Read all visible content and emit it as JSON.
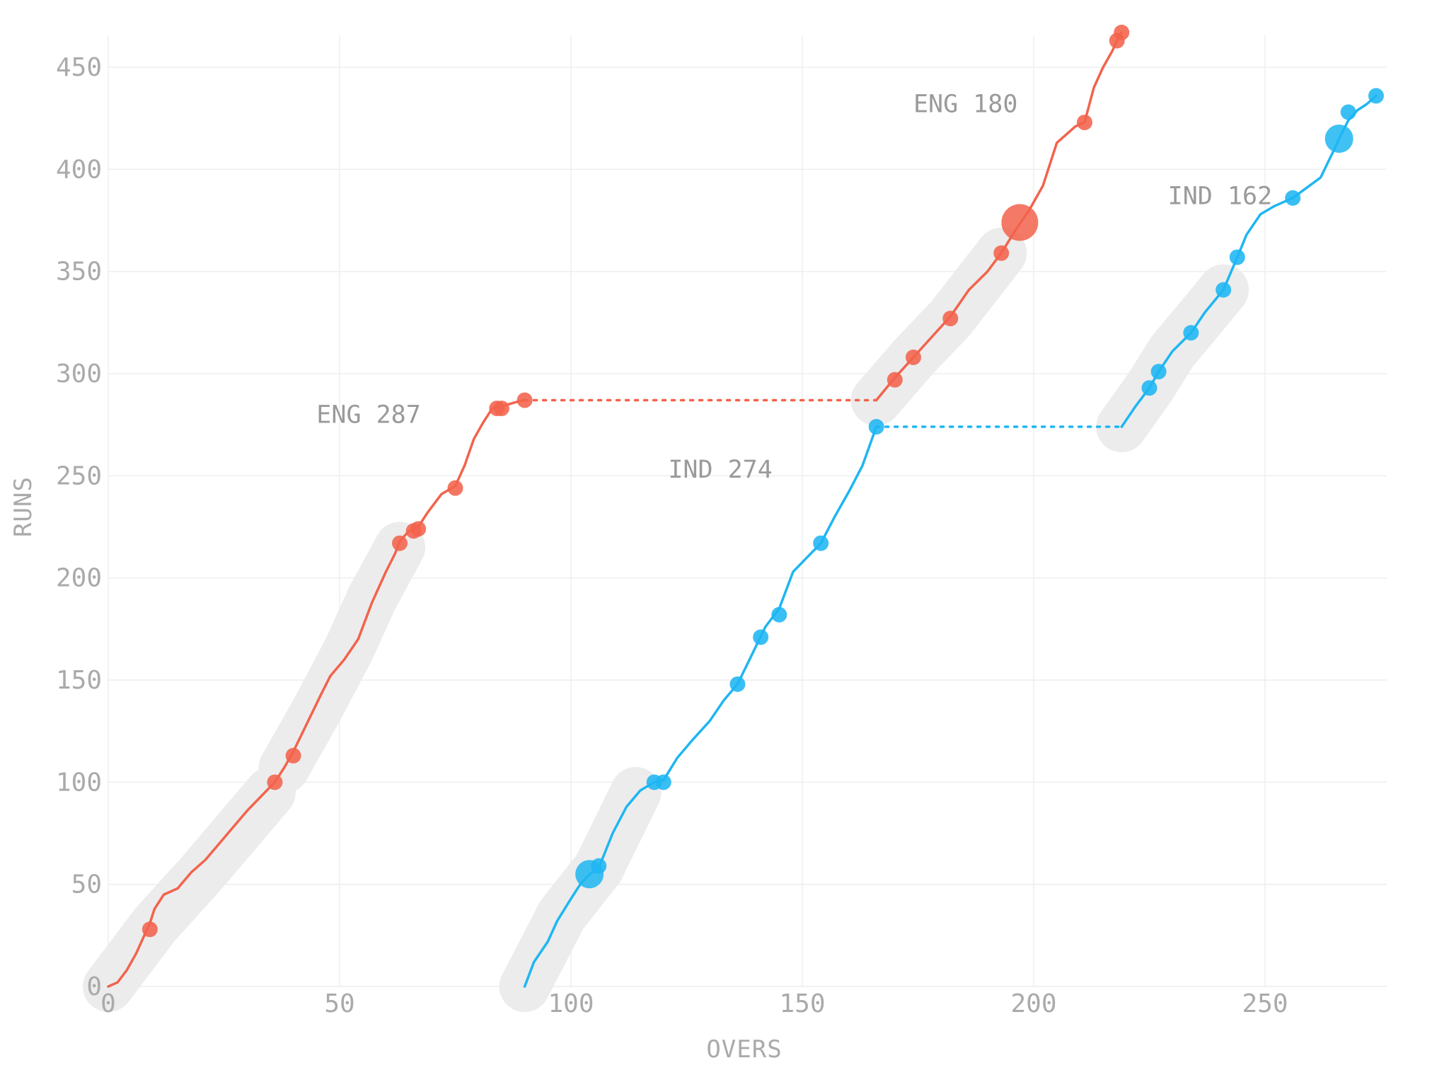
{
  "chart_data": {
    "type": "line",
    "xlabel": "OVERS",
    "ylabel": "RUNS",
    "xlim": [
      0,
      274
    ],
    "ylim": [
      0,
      465
    ],
    "x_ticks": [
      0,
      50,
      100,
      150,
      200,
      250
    ],
    "y_ticks": [
      0,
      50,
      100,
      150,
      200,
      250,
      300,
      350,
      400,
      450
    ],
    "grid": true,
    "colors": {
      "ENG": "#f2634c",
      "IND": "#1eb6f2",
      "partnership_band": "#ececec"
    },
    "annotations": [
      {
        "text": "ENG 287",
        "x": 45,
        "y": 276
      },
      {
        "text": "IND 274",
        "x": 121,
        "y": 249
      },
      {
        "text": "ENG 180",
        "x": 174,
        "y": 428
      },
      {
        "text": "IND 162",
        "x": 229,
        "y": 383
      }
    ],
    "series": [
      {
        "team": "ENG",
        "innings": 1,
        "line": [
          [
            0,
            0
          ],
          [
            2,
            2
          ],
          [
            4,
            8
          ],
          [
            6,
            16
          ],
          [
            8,
            26
          ],
          [
            9,
            31
          ],
          [
            10,
            38
          ],
          [
            12,
            45
          ],
          [
            15,
            48
          ],
          [
            18,
            56
          ],
          [
            21,
            62
          ],
          [
            24,
            70
          ],
          [
            27,
            78
          ],
          [
            30,
            86
          ],
          [
            33,
            93
          ],
          [
            36,
            100
          ],
          [
            38,
            107
          ],
          [
            40,
            115
          ],
          [
            43,
            129
          ],
          [
            46,
            143
          ],
          [
            48,
            152
          ],
          [
            51,
            160
          ],
          [
            54,
            170
          ],
          [
            57,
            188
          ],
          [
            60,
            203
          ],
          [
            62,
            212
          ],
          [
            63,
            218
          ],
          [
            65,
            223
          ],
          [
            67,
            225
          ],
          [
            69,
            232
          ],
          [
            72,
            241
          ],
          [
            75,
            245
          ],
          [
            77,
            255
          ],
          [
            79,
            268
          ],
          [
            81,
            276
          ],
          [
            83,
            283
          ],
          [
            85,
            284
          ],
          [
            88,
            286
          ],
          [
            90,
            287
          ]
        ],
        "wickets": [
          [
            9,
            28
          ],
          [
            36,
            100
          ],
          [
            40,
            113
          ],
          [
            63,
            217
          ],
          [
            66,
            223
          ],
          [
            67,
            224
          ],
          [
            75,
            244
          ],
          [
            84,
            283
          ],
          [
            85,
            283
          ],
          [
            90,
            287
          ]
        ],
        "big_markers": []
      },
      {
        "team": "IND",
        "innings": 1,
        "line": [
          [
            90,
            0
          ],
          [
            92,
            12
          ],
          [
            95,
            22
          ],
          [
            97,
            32
          ],
          [
            100,
            43
          ],
          [
            102,
            50
          ],
          [
            104,
            55
          ],
          [
            106,
            58
          ],
          [
            109,
            75
          ],
          [
            112,
            88
          ],
          [
            115,
            96
          ],
          [
            118,
            100
          ],
          [
            120,
            101
          ],
          [
            123,
            112
          ],
          [
            126,
            120
          ],
          [
            130,
            130
          ],
          [
            133,
            140
          ],
          [
            136,
            148
          ],
          [
            139,
            162
          ],
          [
            142,
            176
          ],
          [
            145,
            185
          ],
          [
            148,
            203
          ],
          [
            151,
            210
          ],
          [
            154,
            217
          ],
          [
            157,
            230
          ],
          [
            160,
            242
          ],
          [
            163,
            255
          ],
          [
            166,
            274
          ]
        ],
        "wickets": [
          [
            106,
            59
          ],
          [
            118,
            100
          ],
          [
            120,
            100
          ],
          [
            136,
            148
          ],
          [
            141,
            171
          ],
          [
            145,
            182
          ],
          [
            154,
            217
          ],
          [
            166,
            274
          ]
        ],
        "big_markers": [
          [
            104,
            55
          ]
        ]
      },
      {
        "team": "ENG",
        "innings": 2,
        "line": [
          [
            166,
            287
          ],
          [
            170,
            298
          ],
          [
            174,
            308
          ],
          [
            178,
            318
          ],
          [
            182,
            328
          ],
          [
            186,
            341
          ],
          [
            190,
            350
          ],
          [
            193,
            359
          ],
          [
            196,
            370
          ],
          [
            199,
            380
          ],
          [
            202,
            392
          ],
          [
            205,
            413
          ],
          [
            209,
            421
          ],
          [
            211,
            423
          ],
          [
            213,
            440
          ],
          [
            215,
            450
          ],
          [
            217,
            458
          ],
          [
            218,
            463
          ],
          [
            219,
            467
          ]
        ],
        "wickets": [
          [
            170,
            297
          ],
          [
            174,
            308
          ],
          [
            182,
            327
          ],
          [
            193,
            359
          ],
          [
            211,
            423
          ],
          [
            218,
            463
          ],
          [
            219,
            467
          ]
        ],
        "big_markers": [
          [
            197,
            374
          ]
        ]
      },
      {
        "team": "IND",
        "innings": 2,
        "line": [
          [
            219,
            274
          ],
          [
            222,
            284
          ],
          [
            225,
            293
          ],
          [
            227,
            301
          ],
          [
            230,
            311
          ],
          [
            234,
            320
          ],
          [
            237,
            330
          ],
          [
            241,
            341
          ],
          [
            244,
            357
          ],
          [
            246,
            368
          ],
          [
            249,
            378
          ],
          [
            252,
            382
          ],
          [
            256,
            386
          ],
          [
            259,
            391
          ],
          [
            262,
            396
          ],
          [
            265,
            410
          ],
          [
            266,
            415
          ],
          [
            268,
            424
          ],
          [
            270,
            429
          ],
          [
            272,
            432
          ],
          [
            274,
            436
          ]
        ],
        "wickets": [
          [
            225,
            293
          ],
          [
            227,
            301
          ],
          [
            234,
            320
          ],
          [
            241,
            341
          ],
          [
            244,
            357
          ],
          [
            256,
            386
          ],
          [
            268,
            428
          ],
          [
            274,
            436
          ]
        ],
        "big_markers": [
          [
            266,
            415
          ]
        ]
      }
    ],
    "innings_breaks": [
      {
        "team": "ENG",
        "from_x": 90,
        "to_x": 166,
        "y": 287
      },
      {
        "team": "IND",
        "from_x": 166,
        "to_x": 219,
        "y": 274
      }
    ],
    "partnership_bands": [
      [
        [
          0,
          0
        ],
        [
          10,
          30
        ],
        [
          20,
          55
        ],
        [
          35,
          95
        ]
      ],
      [
        [
          38,
          107
        ],
        [
          45,
          135
        ],
        [
          52,
          165
        ],
        [
          57,
          190
        ],
        [
          63,
          215
        ]
      ],
      [
        [
          90,
          0
        ],
        [
          98,
          35
        ],
        [
          106,
          58
        ],
        [
          114,
          95
        ]
      ],
      [
        [
          166,
          287
        ],
        [
          174,
          308
        ],
        [
          182,
          327
        ],
        [
          193,
          359
        ]
      ],
      [
        [
          219,
          274
        ],
        [
          225,
          293
        ],
        [
          230,
          311
        ],
        [
          237,
          330
        ],
        [
          241,
          341
        ]
      ]
    ]
  }
}
